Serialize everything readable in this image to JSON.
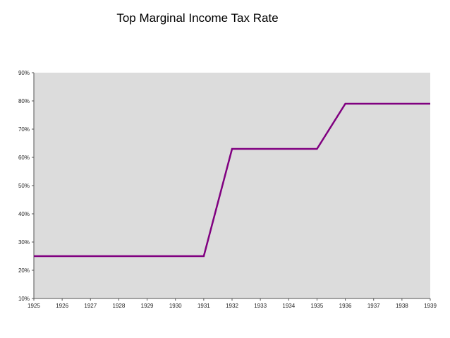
{
  "chart_data": {
    "type": "line",
    "title": "Top Marginal Income Tax Rate",
    "xlabel": "",
    "ylabel": "",
    "x": [
      1925,
      1926,
      1927,
      1928,
      1929,
      1930,
      1931,
      1932,
      1933,
      1934,
      1935,
      1936,
      1937,
      1938,
      1939
    ],
    "x_tick_labels": [
      "1925",
      "1926",
      "1927",
      "1928",
      "1929",
      "1930",
      "1931",
      "1932",
      "1933",
      "1934",
      "1935",
      "1936",
      "1937",
      "1938",
      "1939"
    ],
    "series": [
      {
        "values": [
          25,
          25,
          25,
          25,
          25,
          25,
          25,
          63,
          63,
          63,
          63,
          79,
          79,
          79,
          79
        ],
        "color": "#800080"
      }
    ],
    "ylim": [
      10,
      90
    ],
    "y_ticks": [
      10,
      20,
      30,
      40,
      50,
      60,
      70,
      80,
      90
    ],
    "y_tick_labels": [
      "10%",
      "20%",
      "30%",
      "40%",
      "50%",
      "60%",
      "70%",
      "80%",
      "90%"
    ],
    "grid": false,
    "plot_background": "#dcdcdc",
    "legend": "none"
  }
}
